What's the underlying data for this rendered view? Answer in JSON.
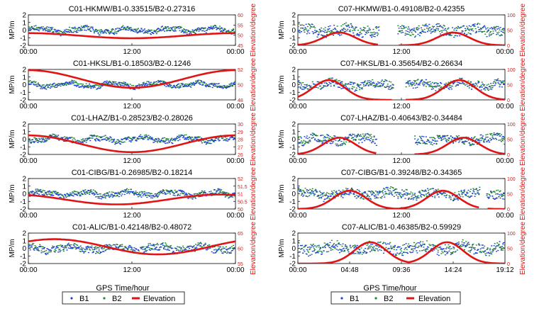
{
  "colors": {
    "b1": "#1f3fd6",
    "b2": "#1c8a2a",
    "elevation": "#e01414",
    "axis": "#000000"
  },
  "mp_axis": {
    "label": "MP/m",
    "ticks": [
      "2",
      "1",
      "0",
      "-1",
      "-2"
    ]
  },
  "elev_axis_label": "Elevation/degree",
  "xlabel": "GPS Time/hour",
  "legends": [
    {
      "b1": "B1",
      "b2": "B2",
      "elev": "Elevation"
    },
    {
      "b1": "B1",
      "b2": "B2",
      "elev": "Elevation"
    }
  ],
  "chart_data": [
    {
      "type": "line",
      "title": "C01-HKMW/B1-0.33515/B2-0.27316",
      "ylim": [
        -2,
        2
      ],
      "elev_ticks": [
        "60",
        "55",
        "50",
        "45"
      ],
      "xticks": [
        "00:00",
        "12:00",
        "00:00"
      ],
      "b1_spread": 0.35,
      "b2_spread": 0.3,
      "elevation": {
        "shape": "cosine",
        "min": 48.5,
        "max": 51,
        "phase": 0
      },
      "gaps": []
    },
    {
      "type": "line",
      "title": "C07-HKMW/B1-0.49108/B2-0.42355",
      "ylim": [
        -2,
        2
      ],
      "elev_ticks": [
        "100",
        "50",
        "0"
      ],
      "xticks": [
        "00:00",
        "12:00",
        "00:00"
      ],
      "b1_spread": 0.7,
      "b2_spread": 0.6,
      "elevation": {
        "shape": "passes",
        "peaks": [
          0.2,
          0.75
        ],
        "height": 42
      },
      "gaps": [
        [
          0.39,
          0.48
        ]
      ]
    },
    {
      "type": "line",
      "title": "C01-HKSL/B1-0.18503/B2-0.1246",
      "ylim": [
        -2,
        2
      ],
      "elev_ticks": [
        "52",
        "50",
        "48"
      ],
      "xticks": [
        "00:00",
        "12:00",
        "00:00"
      ],
      "b1_spread": 0.3,
      "b2_spread": 0.25,
      "elevation": {
        "shape": "cosine",
        "min": 49.6,
        "max": 51.9,
        "phase": 0
      },
      "gaps": []
    },
    {
      "type": "line",
      "title": "C07-HKSL/B1-0.35654/B2-0.26634",
      "ylim": [
        -2,
        2
      ],
      "elev_ticks": [
        "100",
        "50",
        "0"
      ],
      "xticks": [
        "00:00",
        "12:00",
        "00:00"
      ],
      "b1_spread": 0.55,
      "b2_spread": 0.5,
      "elevation": {
        "shape": "passes",
        "peaks": [
          0.15,
          0.78
        ],
        "height": 65
      },
      "gaps": [
        [
          0.46,
          0.52
        ]
      ]
    },
    {
      "type": "line",
      "title": "C01-LHAZ/B1-0.28523/B2-0.28026",
      "ylim": [
        -2,
        2
      ],
      "elev_ticks": [
        "30",
        "29",
        "28",
        "27",
        "26"
      ],
      "xticks": [
        "00:00",
        "12:00",
        "00:00"
      ],
      "b1_spread": 0.35,
      "b2_spread": 0.3,
      "elevation": {
        "shape": "cosine",
        "min": 26.3,
        "max": 28.5,
        "phase": 0
      },
      "gaps": []
    },
    {
      "type": "line",
      "title": "C07-LHAZ/B1-0.40643/B2-0.34484",
      "ylim": [
        -2,
        2
      ],
      "elev_ticks": [
        "100",
        "50",
        "0"
      ],
      "xticks": [
        "00:00",
        "12:00",
        "00:00"
      ],
      "b1_spread": 0.6,
      "b2_spread": 0.55,
      "elevation": {
        "shape": "passes",
        "peaks": [
          0.2,
          0.8
        ],
        "height": 55
      },
      "gaps": [
        [
          0.38,
          0.56
        ]
      ]
    },
    {
      "type": "line",
      "title": "C01-CIBG/B1-0.26985/B2-0.18214",
      "ylim": [
        -2,
        2
      ],
      "elev_ticks": [
        "52",
        "51.5",
        "51",
        "50.5",
        "50"
      ],
      "xticks": [
        "00:00",
        "12:00",
        "00:00"
      ],
      "b1_spread": 0.35,
      "b2_spread": 0.3,
      "elevation": {
        "shape": "cosine",
        "min": 50.3,
        "max": 50.95,
        "phase": 0.3
      },
      "gaps": []
    },
    {
      "type": "line",
      "title": "C07-CIBG/B1-0.39248/B2-0.34365",
      "ylim": [
        -2,
        2
      ],
      "elev_ticks": [
        "100",
        "50",
        "0"
      ],
      "xticks": [
        "00:00",
        "12:00",
        "00:00"
      ],
      "b1_spread": 0.6,
      "b2_spread": 0.55,
      "elevation": {
        "shape": "passes",
        "peaks": [
          0.25,
          0.7
        ],
        "height": 60
      },
      "gaps": [
        [
          0.88,
          0.91
        ]
      ]
    },
    {
      "type": "line",
      "title": "C01-ALIC/B1-0.42148/B2-0.48072",
      "ylim": [
        -2,
        2
      ],
      "elev_ticks": [
        "65",
        "60",
        "55"
      ],
      "xticks": [
        "00:00",
        "12:00",
        "00:00"
      ],
      "b1_spread": 0.45,
      "b2_spread": 0.45,
      "elevation": {
        "shape": "cosine",
        "min": 58,
        "max": 63,
        "phase": -0.5
      },
      "gaps": []
    },
    {
      "type": "line",
      "title": "C07-ALIC/B1-0.46385/B2-0.59929",
      "ylim": [
        -2,
        2
      ],
      "elev_ticks": [
        "100",
        "50",
        "0"
      ],
      "xticks": [
        "00:00",
        "04:48",
        "09:36",
        "14:24",
        "19:12"
      ],
      "b1_spread": 0.7,
      "b2_spread": 0.7,
      "elevation": {
        "shape": "passes",
        "peaks": [
          0.35,
          0.72
        ],
        "height": 70
      },
      "gaps": []
    }
  ]
}
